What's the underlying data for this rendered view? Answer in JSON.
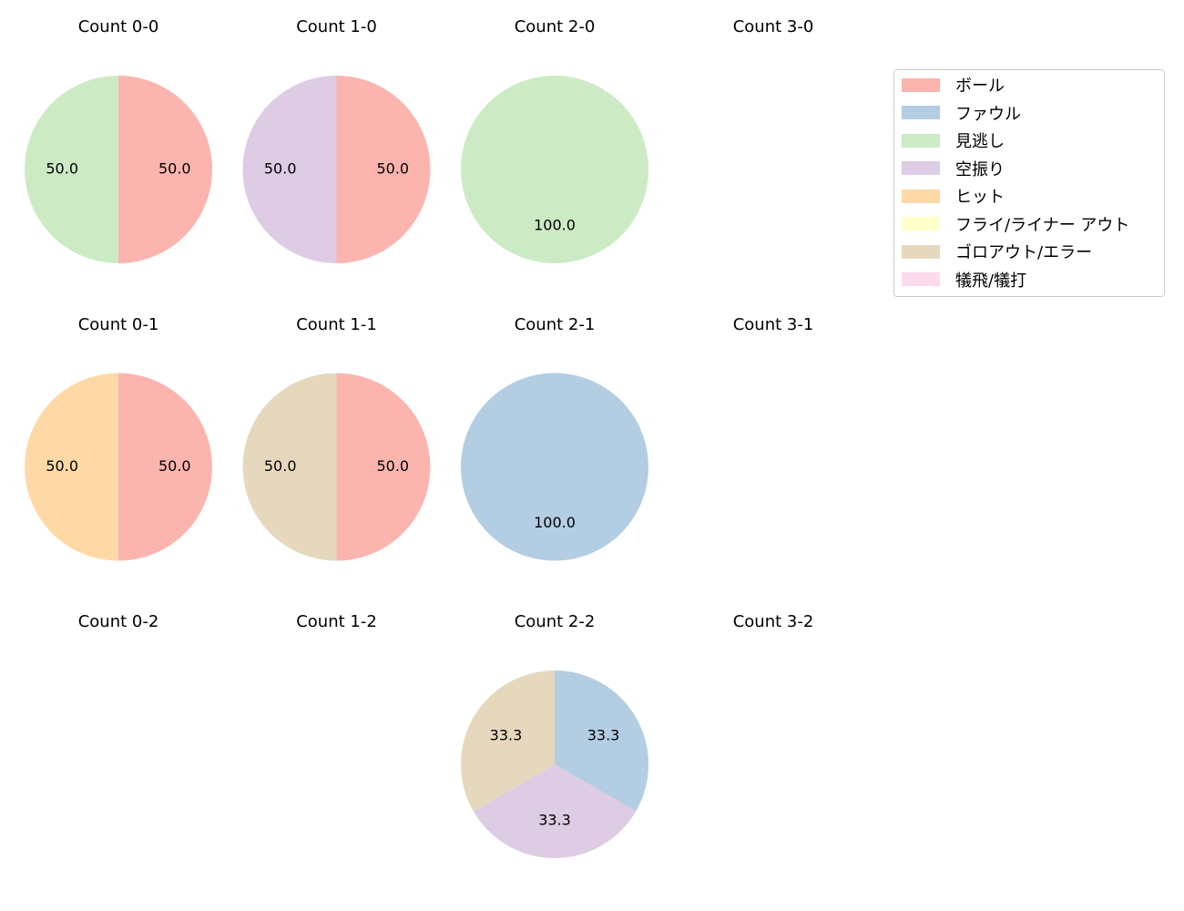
{
  "chart_data": {
    "type": "pie",
    "layout": {
      "rows": 3,
      "cols": 4,
      "legend_position": "upper right"
    },
    "legend": [
      {
        "label": "ボール",
        "color": "#fbb4ae"
      },
      {
        "label": "ファウル",
        "color": "#b3cde3"
      },
      {
        "label": "見逃し",
        "color": "#ccebc5"
      },
      {
        "label": "空振り",
        "color": "#decbe4"
      },
      {
        "label": "ヒット",
        "color": "#fed9a6"
      },
      {
        "label": "フライ/ライナー アウト",
        "color": "#ffffcc"
      },
      {
        "label": "ゴロアウト/エラー",
        "color": "#e5d8bd"
      },
      {
        "label": "犠飛/犠打",
        "color": "#fddaec"
      }
    ],
    "charts": [
      {
        "title": "Count 0-0",
        "row": 0,
        "col": 0,
        "slices": [
          {
            "label": "ボール",
            "value": 50.0
          },
          {
            "label": "見逃し",
            "value": 50.0
          }
        ]
      },
      {
        "title": "Count 1-0",
        "row": 0,
        "col": 1,
        "slices": [
          {
            "label": "ボール",
            "value": 50.0
          },
          {
            "label": "空振り",
            "value": 50.0
          }
        ]
      },
      {
        "title": "Count 2-0",
        "row": 0,
        "col": 2,
        "slices": [
          {
            "label": "見逃し",
            "value": 100.0
          }
        ]
      },
      {
        "title": "Count 3-0",
        "row": 0,
        "col": 3,
        "slices": []
      },
      {
        "title": "Count 0-1",
        "row": 1,
        "col": 0,
        "slices": [
          {
            "label": "ボール",
            "value": 50.0
          },
          {
            "label": "ヒット",
            "value": 50.0
          }
        ]
      },
      {
        "title": "Count 1-1",
        "row": 1,
        "col": 1,
        "slices": [
          {
            "label": "ボール",
            "value": 50.0
          },
          {
            "label": "ゴロアウト/エラー",
            "value": 50.0
          }
        ]
      },
      {
        "title": "Count 2-1",
        "row": 1,
        "col": 2,
        "slices": [
          {
            "label": "ファウル",
            "value": 100.0
          }
        ]
      },
      {
        "title": "Count 3-1",
        "row": 1,
        "col": 3,
        "slices": []
      },
      {
        "title": "Count 0-2",
        "row": 2,
        "col": 0,
        "slices": []
      },
      {
        "title": "Count 1-2",
        "row": 2,
        "col": 1,
        "slices": []
      },
      {
        "title": "Count 2-2",
        "row": 2,
        "col": 2,
        "slices": [
          {
            "label": "ファウル",
            "value": 33.3
          },
          {
            "label": "空振り",
            "value": 33.3
          },
          {
            "label": "ゴロアウト/エラー",
            "value": 33.3
          }
        ]
      },
      {
        "title": "Count 3-2",
        "row": 2,
        "col": 3,
        "slices": []
      }
    ]
  }
}
